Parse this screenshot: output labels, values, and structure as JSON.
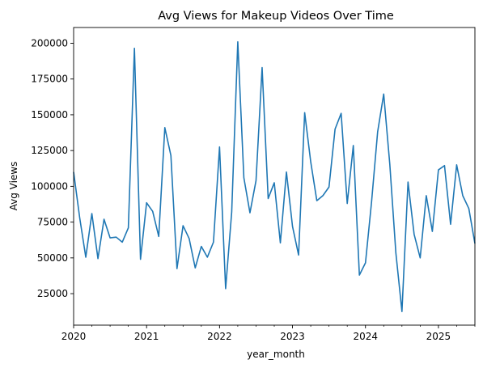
{
  "chart_data": {
    "type": "line",
    "title": "Avg Views for Makeup Videos Over Time",
    "xlabel": "year_month",
    "ylabel": "Avg Views",
    "x_tick_labels": [
      "2020",
      "2021",
      "2022",
      "2023",
      "2024",
      "2025"
    ],
    "y_ticks": [
      25000,
      50000,
      75000,
      100000,
      125000,
      150000,
      175000,
      200000
    ],
    "y_tick_labels": [
      "25000",
      "50000",
      "75000",
      "100000",
      "125000",
      "150000",
      "175000",
      "200000"
    ],
    "ylim": [
      3000,
      211000
    ],
    "xlim": [
      "2020-01",
      "2025-07"
    ],
    "grid": false,
    "line_color": "#1f77b4",
    "series": [
      {
        "x": [
          "2020-01",
          "2020-02",
          "2020-03",
          "2020-04",
          "2020-05",
          "2020-06",
          "2020-07",
          "2020-08",
          "2020-09",
          "2020-10",
          "2020-11",
          "2020-12",
          "2021-01",
          "2021-02",
          "2021-03",
          "2021-04",
          "2021-05",
          "2021-06",
          "2021-07",
          "2021-08",
          "2021-09",
          "2021-10",
          "2021-11",
          "2021-12",
          "2022-01",
          "2022-02",
          "2022-03",
          "2022-04",
          "2022-05",
          "2022-06",
          "2022-07",
          "2022-08",
          "2022-09",
          "2022-10",
          "2022-11",
          "2022-12",
          "2023-01",
          "2023-02",
          "2023-03",
          "2023-04",
          "2023-05",
          "2023-06",
          "2023-07",
          "2023-08",
          "2023-09",
          "2023-10",
          "2023-11",
          "2023-12",
          "2024-01",
          "2024-02",
          "2024-03",
          "2024-04",
          "2024-05",
          "2024-06",
          "2024-07",
          "2024-08",
          "2024-09",
          "2024-10",
          "2024-11",
          "2024-12",
          "2025-01",
          "2025-02",
          "2025-03",
          "2025-04",
          "2025-05",
          "2025-06",
          "2025-07"
        ],
        "values": [
          110000,
          78000,
          50500,
          81000,
          49500,
          77000,
          64000,
          64500,
          61000,
          71000,
          196500,
          49000,
          88500,
          82500,
          65000,
          141000,
          121500,
          42500,
          72500,
          63500,
          43000,
          58000,
          50500,
          61000,
          127500,
          28500,
          82000,
          201000,
          106000,
          81500,
          104000,
          183000,
          91500,
          102500,
          60500,
          110000,
          72000,
          52000,
          151500,
          117000,
          90000,
          93500,
          99500,
          140000,
          151000,
          88000,
          128500,
          38000,
          46500,
          89000,
          138000,
          164500,
          115500,
          53500,
          12500,
          103000,
          66500,
          50000,
          93500,
          68500,
          111500,
          114500,
          73500,
          115000,
          93500,
          84500,
          60000
        ]
      }
    ]
  }
}
